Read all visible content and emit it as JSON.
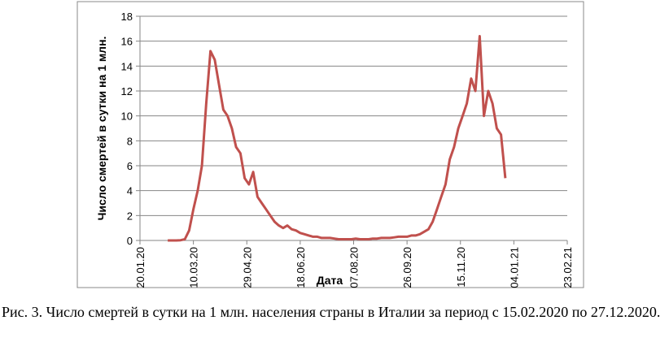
{
  "chart_data": {
    "type": "line",
    "y_label": "Число смертей в сутки на 1 млн.",
    "x_label": "Дата",
    "caption": "Рис. 3. Число смертей в сутки на 1 млн. населения страны в Италии за период с 15.02.2020 по 27.12.2020.",
    "x": [
      "15.02.20",
      "19.02.20",
      "23.02.20",
      "27.02.20",
      "02.03.20",
      "06.03.20",
      "10.03.20",
      "14.03.20",
      "18.03.20",
      "22.03.20",
      "26.03.20",
      "30.03.20",
      "03.04.20",
      "07.04.20",
      "11.04.20",
      "15.04.20",
      "19.04.20",
      "23.04.20",
      "27.04.20",
      "01.05.20",
      "05.05.20",
      "09.05.20",
      "13.05.20",
      "17.05.20",
      "21.05.20",
      "25.05.20",
      "29.05.20",
      "02.06.20",
      "06.06.20",
      "10.06.20",
      "14.06.20",
      "18.06.20",
      "22.06.20",
      "26.06.20",
      "30.06.20",
      "04.07.20",
      "08.07.20",
      "12.07.20",
      "16.07.20",
      "20.07.20",
      "24.07.20",
      "28.07.20",
      "01.08.20",
      "05.08.20",
      "09.08.20",
      "13.08.20",
      "17.08.20",
      "21.08.20",
      "25.08.20",
      "29.08.20",
      "02.09.20",
      "06.09.20",
      "10.09.20",
      "14.09.20",
      "18.09.20",
      "22.09.20",
      "26.09.20",
      "30.09.20",
      "04.10.20",
      "08.10.20",
      "12.10.20",
      "16.10.20",
      "20.10.20",
      "24.10.20",
      "28.10.20",
      "01.11.20",
      "05.11.20",
      "09.11.20",
      "13.11.20",
      "17.11.20",
      "21.11.20",
      "25.11.20",
      "29.11.20",
      "03.12.20",
      "07.12.20",
      "11.12.20",
      "15.12.20",
      "19.12.20",
      "23.12.20",
      "27.12.20"
    ],
    "series": [
      {
        "color": "#c0504d",
        "values": [
          0,
          0,
          0,
          0.02,
          0.1,
          0.8,
          2.5,
          4,
          6,
          11,
          15.2,
          14.5,
          12.5,
          10.5,
          10,
          9,
          7.5,
          7,
          5,
          4.5,
          5.5,
          3.5,
          3,
          2.5,
          2,
          1.5,
          1.2,
          1,
          1.2,
          0.9,
          0.8,
          0.6,
          0.5,
          0.4,
          0.3,
          0.3,
          0.2,
          0.2,
          0.2,
          0.15,
          0.1,
          0.1,
          0.1,
          0.1,
          0.15,
          0.1,
          0.1,
          0.1,
          0.15,
          0.15,
          0.2,
          0.2,
          0.2,
          0.25,
          0.3,
          0.3,
          0.3,
          0.4,
          0.4,
          0.5,
          0.7,
          0.9,
          1.5,
          2.5,
          3.5,
          4.5,
          6.5,
          7.5,
          9,
          10,
          11,
          13,
          12,
          16.4,
          10,
          12,
          11,
          9,
          8.5,
          5
        ]
      }
    ],
    "xlim": [
      "20.01.20",
      "23.02.21"
    ],
    "xticks": [
      "20.01.20",
      "10.03.20",
      "29.04.20",
      "18.06.20",
      "07.08.20",
      "26.09.20",
      "15.11.20",
      "04.01.21",
      "23.02.21"
    ],
    "ylim": [
      0,
      18
    ],
    "yticks": [
      0,
      2,
      4,
      6,
      8,
      10,
      12,
      14,
      16,
      18
    ],
    "grid": true
  }
}
